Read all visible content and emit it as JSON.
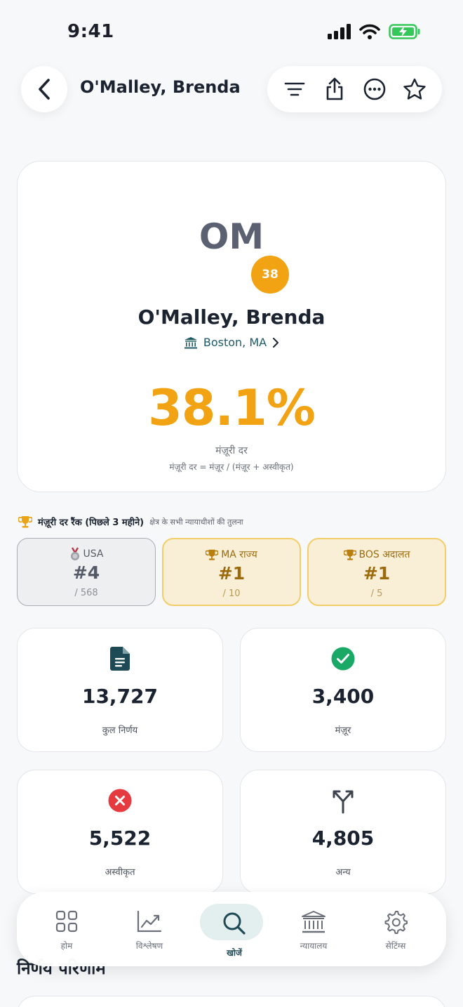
{
  "status_bar": {
    "time": "9:41"
  },
  "header": {
    "title": "O'Malley, Brenda"
  },
  "profile": {
    "initials": "OM",
    "badge": "38",
    "name": "O'Malley, Brenda",
    "location": "Boston, MA",
    "rate": "38.1%",
    "rate_label": "मंज़ूरी दर",
    "rate_formula": "मंज़ूरी दर = मंज़ूर / (मंज़ूर + अस्वीकृत)"
  },
  "rank": {
    "title": "मंज़ूरी दर रैंक (पिछले 3 महीने)",
    "subtitle": "क्षेत्र के सभी न्यायाधीशों की तुलना",
    "cards": [
      {
        "label": "USA",
        "value": "#4",
        "total": "/ 568",
        "icon": "medal-icon",
        "style": "gray"
      },
      {
        "label": "MA राज्य",
        "value": "#1",
        "total": "/ 10",
        "icon": "trophy-icon",
        "style": "gold"
      },
      {
        "label": "BOS अदालत",
        "value": "#1",
        "total": "/ 5",
        "icon": "trophy-icon",
        "style": "gold"
      }
    ]
  },
  "stats": [
    {
      "value": "13,727",
      "label": "कुल निर्णय",
      "icon": "document-icon"
    },
    {
      "value": "3,400",
      "label": "मंज़ूर",
      "icon": "check-circle-icon"
    },
    {
      "value": "5,522",
      "label": "अस्वीकृत",
      "icon": "x-circle-icon"
    },
    {
      "value": "4,805",
      "label": "अन्य",
      "icon": "split-arrow-icon"
    }
  ],
  "section": {
    "heading": "निर्णय परिणाम"
  },
  "tabs": [
    {
      "label": "होम",
      "icon": "grid-icon",
      "active": false
    },
    {
      "label": "विश्लेषण",
      "icon": "chart-icon",
      "active": false
    },
    {
      "label": "खोजें",
      "icon": "search-icon",
      "active": true
    },
    {
      "label": "न्यायालय",
      "icon": "courthouse-icon",
      "active": false
    },
    {
      "label": "सेटिंग्स",
      "icon": "gear-icon",
      "active": false
    }
  ],
  "colors": {
    "accent": "#f2a313",
    "teal": "#1e4a55",
    "green": "#19a866",
    "red": "#e43a40"
  }
}
